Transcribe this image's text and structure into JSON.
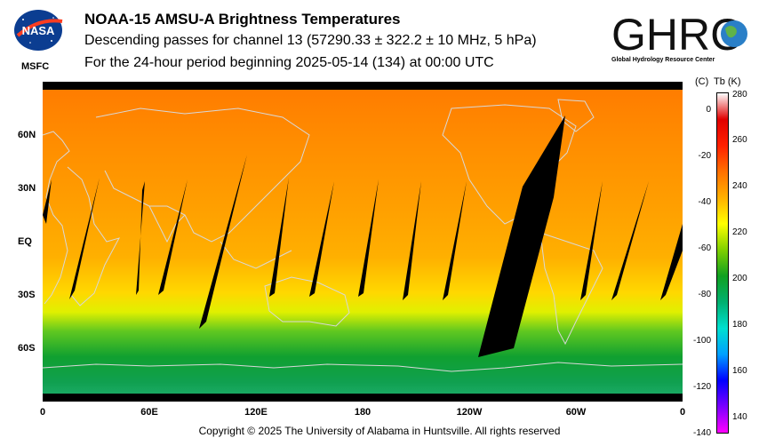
{
  "header": {
    "title": "NOAA-15 AMSU-A Brightness Temperatures",
    "subtitle": "Descending passes for channel 13 (57290.33 ± 322.2 ± 10 MHz, 5 hPa)",
    "period": "For the 24-hour period beginning 2025-05-14 (134) at 00:00 UTC"
  },
  "logos": {
    "nasa_text": "NASA",
    "msfc": "MSFC",
    "ghrc_text": "GHRC",
    "ghrc_subtitle": "Global Hydrology Resource Center"
  },
  "map": {
    "x_ticks": [
      "0",
      "60E",
      "120E",
      "180",
      "120W",
      "60W",
      "0"
    ],
    "y_ticks": [
      "60N",
      "30N",
      "EQ",
      "30S",
      "60S"
    ],
    "projection": "equirectangular",
    "swath_color": "#000000",
    "coastline_color": "#d0d0d0"
  },
  "colorbar": {
    "celsius_label": "(C)",
    "kelvin_label": "Tb  (K)",
    "celsius_ticks": [
      "0",
      "-20",
      "-40",
      "-60",
      "-80",
      "-100",
      "-120",
      "-140"
    ],
    "kelvin_ticks": [
      "280",
      "260",
      "240",
      "220",
      "200",
      "180",
      "160",
      "140"
    ],
    "kelvin_range": [
      133,
      281
    ],
    "colors": [
      "#ff00ff",
      "#7a00ff",
      "#0000ff",
      "#00a0ff",
      "#00e0d0",
      "#00b070",
      "#10a020",
      "#80d000",
      "#ffff00",
      "#ffb000",
      "#ff7000",
      "#ff2000",
      "#e00000",
      "#ffffff"
    ]
  },
  "footer": {
    "copyright": "Copyright © 2025 The University of Alabama in Huntsville.  All rights reserved"
  }
}
